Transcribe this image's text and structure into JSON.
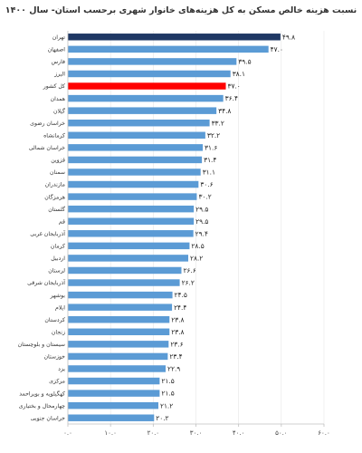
{
  "chart_data": {
    "type": "bar",
    "orientation": "horizontal",
    "title": "نسبت هزینه خالص مسکن به کل هزینه‌های خانوار شهری برحسب استان- سال ۱۴۰۰",
    "categories": [
      "تهران",
      "اصفهان",
      "فارس",
      "البرز",
      "کل کشور",
      "همدان",
      "گیلان",
      "خراسان رضوی",
      "کرمانشاه",
      "خراسان شمالی",
      "قزوین",
      "سمنان",
      "مازندران",
      "هرمزگان",
      "گلستان",
      "قم",
      "آذربایجان غربی",
      "کرمان",
      "اردبیل",
      "لرستان",
      "آذربایجان شرقی",
      "بوشهر",
      "ایلام",
      "کردستان",
      "زنجان",
      "سیستان و بلوچستان",
      "خوزستان",
      "یزد",
      "مرکزی",
      "کهگیلویه و بویراحمد",
      "چهارمحال و بختیاری",
      "خراسان جنوبی"
    ],
    "values": [
      49.8,
      47.0,
      39.5,
      38.1,
      37.0,
      36.4,
      34.8,
      33.2,
      32.2,
      31.6,
      31.4,
      31.1,
      30.6,
      30.2,
      29.5,
      29.5,
      29.4,
      28.5,
      28.2,
      26.6,
      26.2,
      24.5,
      24.4,
      23.8,
      23.8,
      23.6,
      23.4,
      22.9,
      21.5,
      21.5,
      21.2,
      20.2
    ],
    "value_labels": [
      "۴۹.۸",
      "۴۷.۰",
      "۳۹.۵",
      "۳۸.۱",
      "۳۷.۰",
      "۳۶.۴",
      "۳۴.۸",
      "۳۳.۲",
      "۳۲.۲",
      "۳۱.۶",
      "۳۱.۴",
      "۳۱.۱",
      "۳۰.۶",
      "۳۰.۲",
      "۲۹.۵",
      "۲۹.۵",
      "۲۹.۴",
      "۲۸.۵",
      "۲۸.۲",
      "۲۶.۶",
      "۲۶.۲",
      "۲۴.۵",
      "۲۴.۴",
      "۲۳.۸",
      "۲۳.۸",
      "۲۳.۶",
      "۲۳.۴",
      "۲۲.۹",
      "۲۱.۵",
      "۲۱.۵",
      "۲۱.۲",
      "۲۰.۲"
    ],
    "xlim": [
      0,
      60
    ],
    "xticks": [
      0,
      10,
      20,
      30,
      40,
      50,
      60
    ],
    "xtick_labels": [
      "۰.۰",
      "۱۰.۰",
      "۲۰.۰",
      "۳۰.۰",
      "۴۰.۰",
      "۵۰.۰",
      "۶۰.۰"
    ],
    "bar_colors": {
      "default": "#5b9bd5",
      "top": "#1f3864",
      "national": "#ff0000"
    },
    "highlight": {
      "top_index": 0,
      "national_index": 4
    },
    "grid": "vertical",
    "axis_color": "#bfbfbf"
  }
}
